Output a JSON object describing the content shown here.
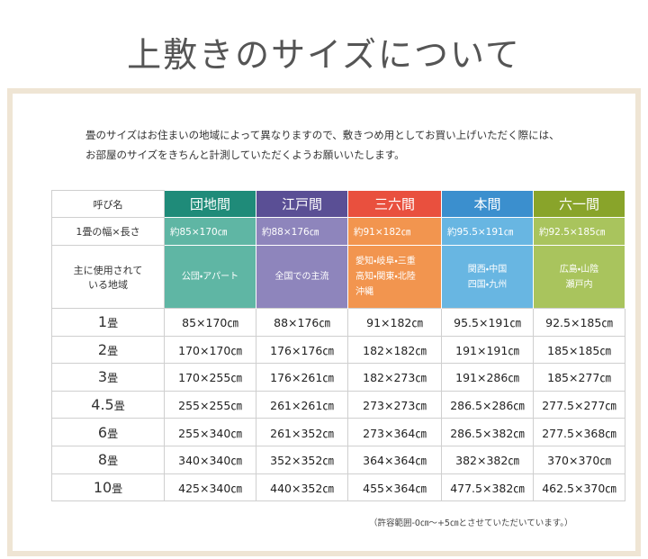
{
  "header": {
    "title": "上敷きのサイズについて"
  },
  "intro": [
    "畳のサイズはお住まいの地域によって異なりますので、敷きつめ用としてお買い上げいただく際には、",
    "お部屋のサイズをきちんと計測していただくようお願いいたします。"
  ],
  "table": {
    "header_label": "呼び名",
    "size_label": "1畳の幅×長さ",
    "region_label": [
      "主に使用されて",
      "いる地域"
    ],
    "columns": [
      {
        "name": "団地間",
        "color": "#1f8b79",
        "light": "#5fb6a4",
        "size": "約85×170㎝",
        "region": [
          "公団・アパート"
        ]
      },
      {
        "name": "江戸間",
        "color": "#5a4f95",
        "light": "#8e85bc",
        "size": "約88×176㎝",
        "region": [
          "全国での主流"
        ]
      },
      {
        "name": "三六間",
        "color": "#e9503e",
        "light": "#f2954f",
        "size": "約91×182㎝",
        "region": [
          "愛知・岐阜・三重",
          "高知・関東・北陸",
          "沖縄"
        ]
      },
      {
        "name": "本間",
        "color": "#3b8fce",
        "light": "#68b6e2",
        "size": "約95.5×191㎝",
        "region": [
          "関西・中国",
          "四国・九州"
        ]
      },
      {
        "name": "六一間",
        "color": "#89a42a",
        "light": "#a9c45d",
        "size": "約92.5×185㎝",
        "region": [
          "広島・山陰",
          "瀬戸内"
        ]
      }
    ],
    "rows": [
      {
        "count": "1",
        "unit": "畳",
        "sizes": [
          "85×170㎝",
          "88×176㎝",
          "91×182㎝",
          "95.5×191㎝",
          "92.5×185㎝"
        ]
      },
      {
        "count": "2",
        "unit": "畳",
        "sizes": [
          "170×170㎝",
          "176×176㎝",
          "182×182㎝",
          "191×191㎝",
          "185×185㎝"
        ]
      },
      {
        "count": "3",
        "unit": "畳",
        "sizes": [
          "170×255㎝",
          "176×261㎝",
          "182×273㎝",
          "191×286㎝",
          "185×277㎝"
        ]
      },
      {
        "count": "4.5",
        "unit": "畳",
        "sizes": [
          "255×255㎝",
          "261×261㎝",
          "273×273㎝",
          "286.5×286㎝",
          "277.5×277㎝"
        ]
      },
      {
        "count": "6",
        "unit": "畳",
        "sizes": [
          "255×340㎝",
          "261×352㎝",
          "273×364㎝",
          "286.5×382㎝",
          "277.5×368㎝"
        ]
      },
      {
        "count": "8",
        "unit": "畳",
        "sizes": [
          "340×340㎝",
          "352×352㎝",
          "364×364㎝",
          "382×382㎝",
          "370×370㎝"
        ]
      },
      {
        "count": "10",
        "unit": "畳",
        "sizes": [
          "425×340㎝",
          "440×352㎝",
          "455×364㎝",
          "477.5×382㎝",
          "462.5×370㎝"
        ]
      }
    ]
  },
  "footnote": "（許容範囲-0㎝～+5㎝とさせていただいています。）"
}
